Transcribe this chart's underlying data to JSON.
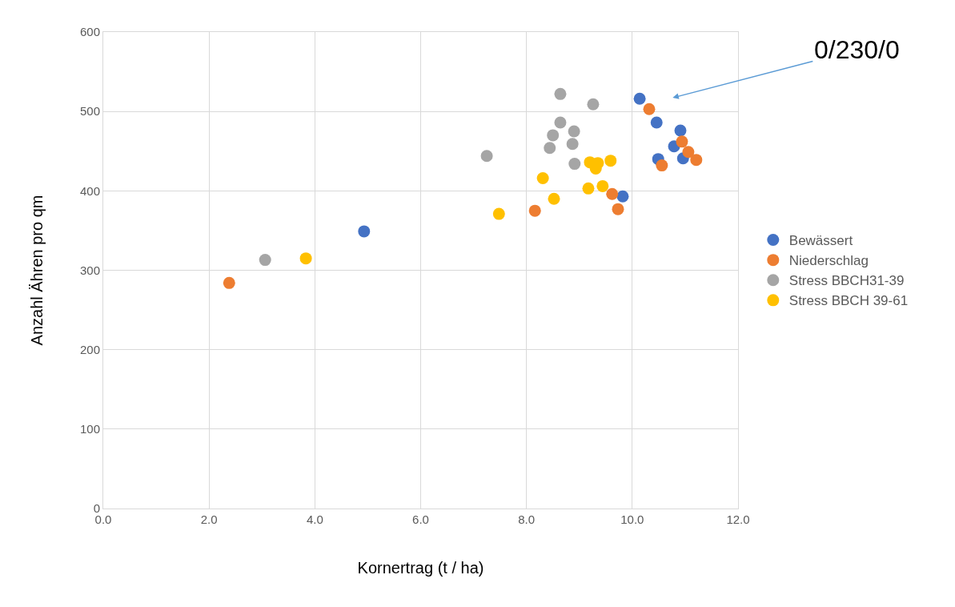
{
  "chart_data": {
    "type": "scatter",
    "xlabel": "Kornertrag (t / ha)",
    "ylabel": "Anzahl Ähren pro qm",
    "xlim": [
      0,
      12
    ],
    "xticks": [
      {
        "value": 0,
        "label": "0.0"
      },
      {
        "value": 2,
        "label": "2.0"
      },
      {
        "value": 4,
        "label": "4.0"
      },
      {
        "value": 6,
        "label": "6.0"
      },
      {
        "value": 8,
        "label": "8.0"
      },
      {
        "value": 10,
        "label": "10.0"
      },
      {
        "value": 12,
        "label": "12.0"
      }
    ],
    "ylim": [
      0,
      600
    ],
    "yticks": [
      0,
      100,
      200,
      300,
      400,
      500,
      600
    ],
    "grid": true,
    "legend": "right",
    "marker": "circle",
    "annotations": [
      "0/230/0"
    ],
    "series": [
      {
        "name": "Bewässert",
        "color": "#4472c4",
        "x": [
          10.14,
          10.46,
          10.91,
          10.79,
          10.49,
          10.96,
          9.82,
          4.93
        ],
        "values": [
          516,
          486,
          476,
          456,
          440,
          441,
          393,
          349
        ]
      },
      {
        "name": "Niederschlag",
        "color": "#ed7d31",
        "x": [
          10.32,
          10.94,
          11.06,
          11.21,
          10.56,
          9.62,
          9.73,
          8.16,
          2.38
        ],
        "values": [
          503,
          462,
          449,
          439,
          432,
          396,
          377,
          375,
          284
        ]
      },
      {
        "name": "Stress BBCH31-39",
        "color": "#a5a5a5",
        "x": [
          8.64,
          9.26,
          8.64,
          8.9,
          8.5,
          8.87,
          8.44,
          7.25,
          8.91,
          3.06
        ],
        "values": [
          522,
          509,
          486,
          475,
          470,
          459,
          454,
          444,
          434,
          313
        ]
      },
      {
        "name": "Stress BBCH 39-61",
        "color": "#ffc000",
        "x": [
          9.2,
          9.35,
          9.31,
          9.59,
          8.31,
          9.17,
          9.44,
          8.52,
          7.48,
          3.83
        ],
        "values": [
          436,
          435,
          428,
          438,
          416,
          403,
          406,
          390,
          371,
          315
        ]
      }
    ]
  }
}
